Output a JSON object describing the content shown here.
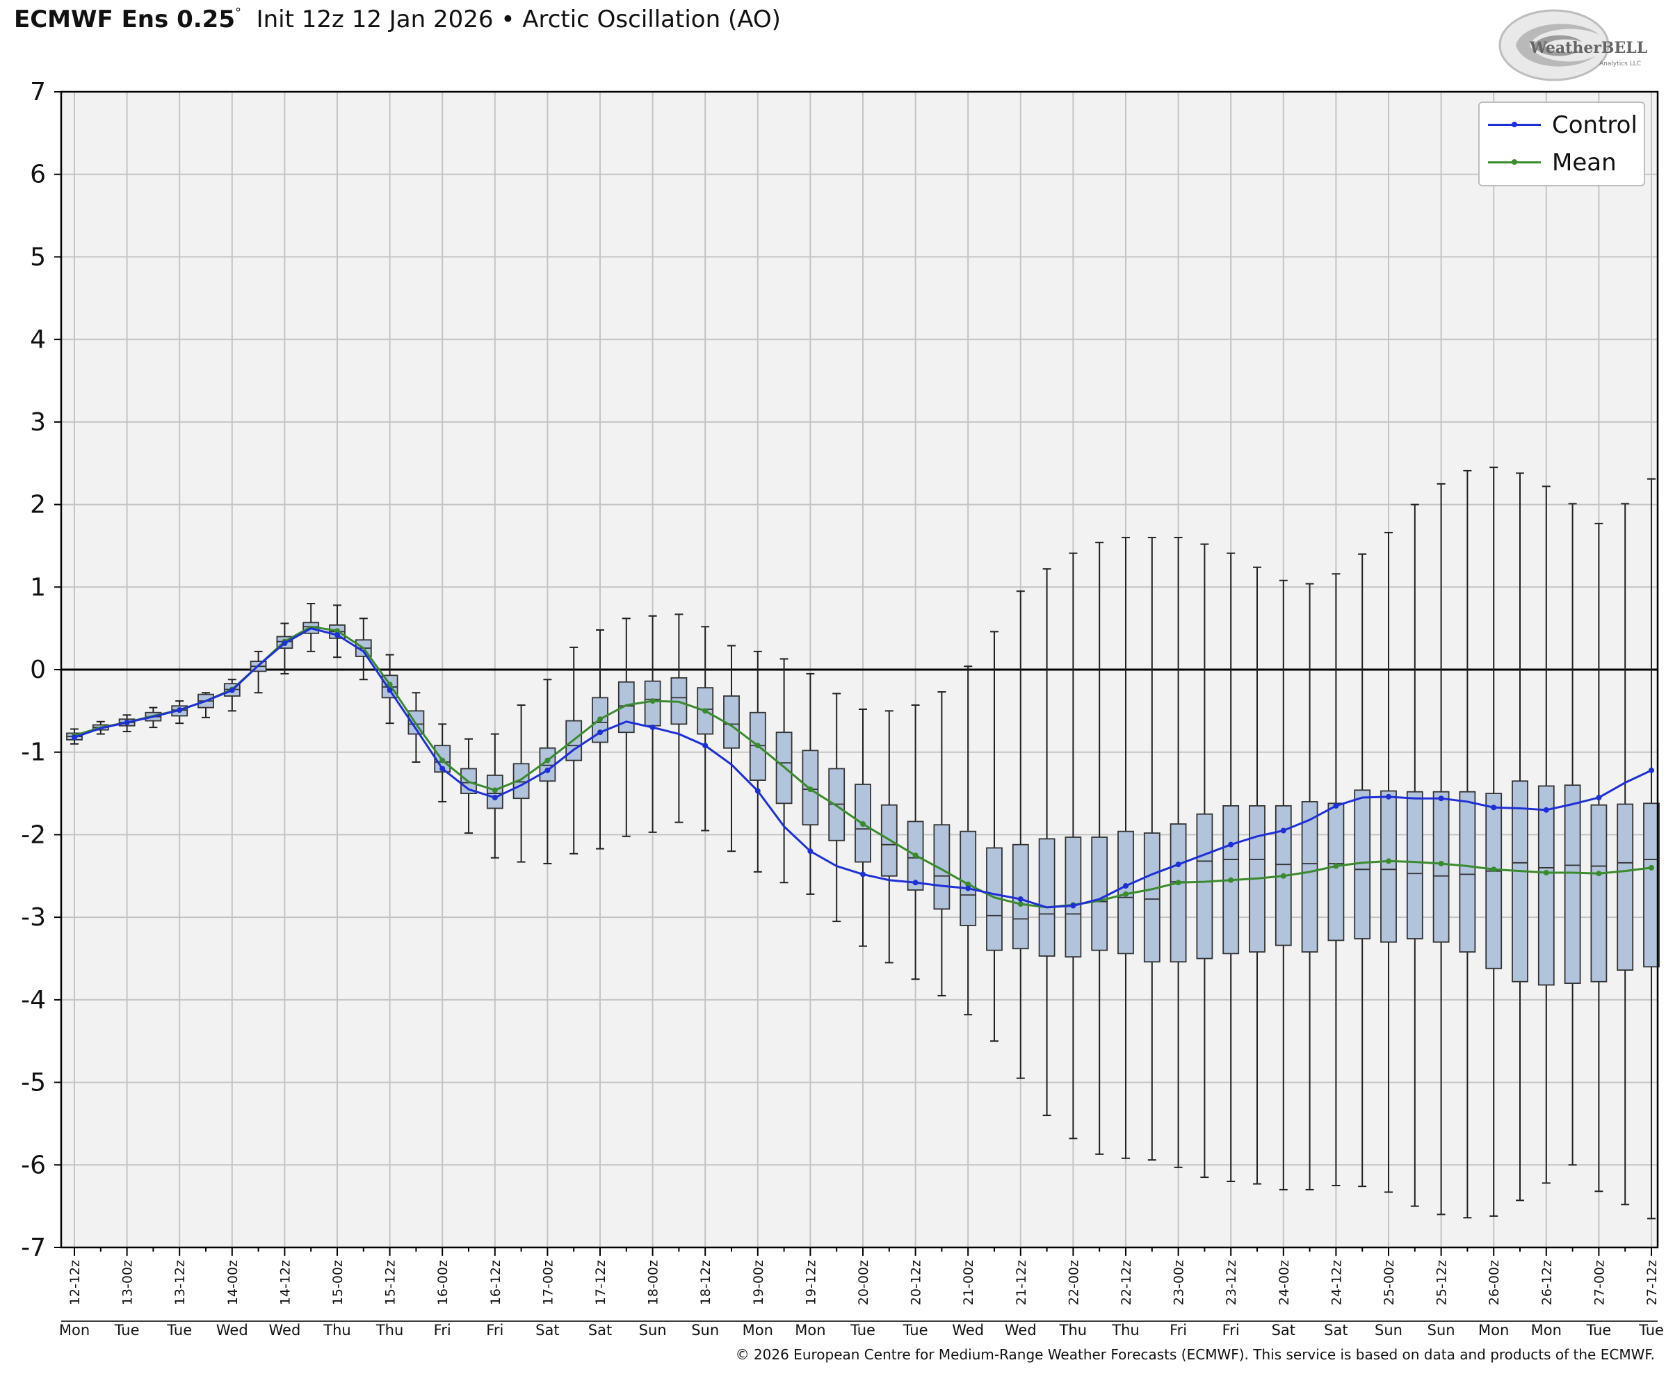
{
  "header": {
    "model": "ECMWF Ens 0.25",
    "degree": "°",
    "init": "Init 12z 12 Jan 2026",
    "bullet": "•",
    "index_name": "Arctic Oscillation (AO)"
  },
  "logo": {
    "text": "WeatherBELL",
    "sub": "Analytics LLC"
  },
  "copyright": "© 2026 European Centre for Medium-Range Weather Forecasts (ECMWF). This service is based on data and products of the ECMWF.",
  "colors": {
    "control": "#1f2fd6",
    "mean": "#3a8a2e",
    "box_fill": "#b2c3dc",
    "plot_bg": "#f2f2f2",
    "grid": "#c4c4c4"
  },
  "chart_data": {
    "type": "box",
    "title": "",
    "ylim": [
      -7,
      7
    ],
    "yticks": [
      7,
      6,
      5,
      4,
      3,
      2,
      1,
      0,
      -1,
      -2,
      -3,
      -4,
      -5,
      -6,
      -7
    ],
    "grid": true,
    "legend_position": "top-right",
    "x": [
      "12-12z",
      "13-00z",
      "13-12z",
      "14-00z",
      "14-12z",
      "15-00z",
      "15-12z",
      "16-00z",
      "16-12z",
      "17-00z",
      "17-12z",
      "18-00z",
      "18-12z",
      "19-00z",
      "19-12z",
      "20-00z",
      "20-12z",
      "21-00z",
      "21-12z",
      "22-00z",
      "22-12z",
      "23-00z",
      "23-12z",
      "24-00z",
      "24-12z",
      "25-00z",
      "25-12z",
      "26-00z",
      "26-12z",
      "27-00z",
      "27-12z"
    ],
    "x_days": [
      "Mon",
      "Tue",
      "Tue",
      "Wed",
      "Wed",
      "Thu",
      "Thu",
      "Fri",
      "Fri",
      "Sat",
      "Sat",
      "Sun",
      "Sun",
      "Mon",
      "Mon",
      "Tue",
      "Tue",
      "Wed",
      "Wed",
      "Thu",
      "Thu",
      "Fri",
      "Fri",
      "Sat",
      "Sat",
      "Sun",
      "Sun",
      "Mon",
      "Mon",
      "Tue",
      "Tue"
    ],
    "steps_per_label": 2,
    "series": [
      {
        "name": "Control",
        "values": [
          -0.82,
          -0.71,
          -0.64,
          -0.57,
          -0.49,
          -0.38,
          -0.25,
          0.05,
          0.32,
          0.5,
          0.42,
          0.22,
          -0.25,
          -0.72,
          -1.2,
          -1.45,
          -1.55,
          -1.4,
          -1.22,
          -0.97,
          -0.76,
          -0.63,
          -0.7,
          -0.78,
          -0.92,
          -1.15,
          -1.47,
          -1.9,
          -2.2,
          -2.38,
          -2.48,
          -2.55,
          -2.58,
          -2.62,
          -2.65,
          -2.72,
          -2.78,
          -2.88,
          -2.86,
          -2.78,
          -2.62,
          -2.48,
          -2.36,
          -2.24,
          -2.12,
          -2.02,
          -1.95,
          -1.82,
          -1.65,
          -1.55,
          -1.54,
          -1.56,
          -1.56,
          -1.6,
          -1.67,
          -1.68,
          -1.7,
          -1.63,
          -1.55,
          -1.37,
          -1.22
        ]
      },
      {
        "name": "Mean",
        "values": [
          -0.8,
          -0.7,
          -0.64,
          -0.56,
          -0.49,
          -0.38,
          -0.24,
          0.05,
          0.34,
          0.52,
          0.47,
          0.26,
          -0.18,
          -0.66,
          -1.1,
          -1.36,
          -1.46,
          -1.33,
          -1.1,
          -0.85,
          -0.6,
          -0.43,
          -0.38,
          -0.39,
          -0.5,
          -0.68,
          -0.92,
          -1.18,
          -1.45,
          -1.65,
          -1.87,
          -2.06,
          -2.25,
          -2.42,
          -2.6,
          -2.76,
          -2.84,
          -2.88,
          -2.85,
          -2.8,
          -2.72,
          -2.66,
          -2.58,
          -2.57,
          -2.55,
          -2.53,
          -2.5,
          -2.45,
          -2.38,
          -2.34,
          -2.32,
          -2.33,
          -2.35,
          -2.38,
          -2.42,
          -2.44,
          -2.46,
          -2.46,
          -2.47,
          -2.44,
          -2.4
        ]
      }
    ],
    "boxes": {
      "whisker_low": [
        -0.9,
        -0.78,
        -0.75,
        -0.7,
        -0.65,
        -0.58,
        -0.5,
        -0.28,
        -0.05,
        0.22,
        0.15,
        -0.12,
        -0.65,
        -1.12,
        -1.6,
        -1.98,
        -2.28,
        -2.33,
        -2.35,
        -2.23,
        -2.17,
        -2.02,
        -1.97,
        -1.85,
        -1.95,
        -2.2,
        -2.45,
        -2.58,
        -2.72,
        -3.05,
        -3.35,
        -3.55,
        -3.75,
        -3.95,
        -4.18,
        -4.5,
        -4.95,
        -5.4,
        -5.68,
        -5.87,
        -5.92,
        -5.94,
        -6.03,
        -6.15,
        -6.2,
        -6.23,
        -6.3,
        -6.3,
        -6.25,
        -6.26,
        -6.33,
        -6.5,
        -6.6,
        -6.64,
        -6.62,
        -6.43,
        -6.22,
        -6.0,
        -6.32,
        -6.48,
        -6.65
      ],
      "q1": [
        -0.85,
        -0.73,
        -0.68,
        -0.62,
        -0.56,
        -0.46,
        -0.32,
        -0.02,
        0.26,
        0.44,
        0.38,
        0.16,
        -0.34,
        -0.78,
        -1.24,
        -1.5,
        -1.68,
        -1.56,
        -1.35,
        -1.1,
        -0.88,
        -0.76,
        -0.68,
        -0.66,
        -0.78,
        -0.95,
        -1.34,
        -1.62,
        -1.88,
        -2.07,
        -2.33,
        -2.5,
        -2.67,
        -2.9,
        -3.1,
        -3.4,
        -3.38,
        -3.47,
        -3.48,
        -3.4,
        -3.44,
        -3.54,
        -3.54,
        -3.5,
        -3.44,
        -3.42,
        -3.34,
        -3.42,
        -3.28,
        -3.26,
        -3.3,
        -3.26,
        -3.3,
        -3.42,
        -3.62,
        -3.78,
        -3.82,
        -3.8,
        -3.78,
        -3.64,
        -3.6
      ],
      "median": [
        -0.81,
        -0.7,
        -0.64,
        -0.57,
        -0.49,
        -0.38,
        -0.24,
        0.04,
        0.34,
        0.52,
        0.46,
        0.26,
        -0.21,
        -0.66,
        -1.12,
        -1.37,
        -1.5,
        -1.36,
        -1.16,
        -0.92,
        -0.64,
        -0.44,
        -0.36,
        -0.34,
        -0.48,
        -0.66,
        -0.92,
        -1.13,
        -1.45,
        -1.63,
        -1.93,
        -2.12,
        -2.28,
        -2.5,
        -2.73,
        -2.98,
        -3.02,
        -2.96,
        -2.96,
        -2.81,
        -2.76,
        -2.78,
        -2.57,
        -2.32,
        -2.3,
        -2.3,
        -2.36,
        -2.35,
        -2.35,
        -2.42,
        -2.42,
        -2.47,
        -2.5,
        -2.48,
        -2.44,
        -2.34,
        -2.4,
        -2.37,
        -2.38,
        -2.34,
        -2.3
      ],
      "q3": [
        -0.77,
        -0.67,
        -0.6,
        -0.52,
        -0.44,
        -0.3,
        -0.17,
        0.1,
        0.4,
        0.57,
        0.54,
        0.36,
        -0.07,
        -0.5,
        -0.92,
        -1.2,
        -1.28,
        -1.14,
        -0.95,
        -0.62,
        -0.34,
        -0.15,
        -0.14,
        -0.1,
        -0.22,
        -0.32,
        -0.52,
        -0.76,
        -0.98,
        -1.2,
        -1.39,
        -1.64,
        -1.84,
        -1.88,
        -1.96,
        -2.16,
        -2.12,
        -2.05,
        -2.03,
        -2.03,
        -1.96,
        -1.98,
        -1.87,
        -1.75,
        -1.65,
        -1.65,
        -1.65,
        -1.6,
        -1.62,
        -1.46,
        -1.47,
        -1.48,
        -1.48,
        -1.48,
        -1.5,
        -1.35,
        -1.41,
        -1.4,
        -1.64,
        -1.63,
        -1.62
      ],
      "whisker_high": [
        -0.72,
        -0.63,
        -0.55,
        -0.46,
        -0.38,
        -0.28,
        -0.12,
        0.22,
        0.56,
        0.8,
        0.78,
        0.62,
        0.18,
        -0.28,
        -0.66,
        -0.84,
        -0.78,
        -0.43,
        -0.12,
        0.27,
        0.48,
        0.62,
        0.65,
        0.67,
        0.52,
        0.29,
        0.22,
        0.13,
        -0.05,
        -0.29,
        -0.48,
        -0.5,
        -0.43,
        -0.27,
        0.04,
        0.46,
        0.95,
        1.22,
        1.41,
        1.54,
        1.6,
        1.6,
        1.6,
        1.52,
        1.41,
        1.24,
        1.08,
        1.04,
        1.16,
        1.4,
        1.66,
        2.0,
        2.25,
        2.41,
        2.45,
        2.38,
        2.22,
        2.01,
        1.77,
        2.01,
        2.31
      ]
    }
  }
}
